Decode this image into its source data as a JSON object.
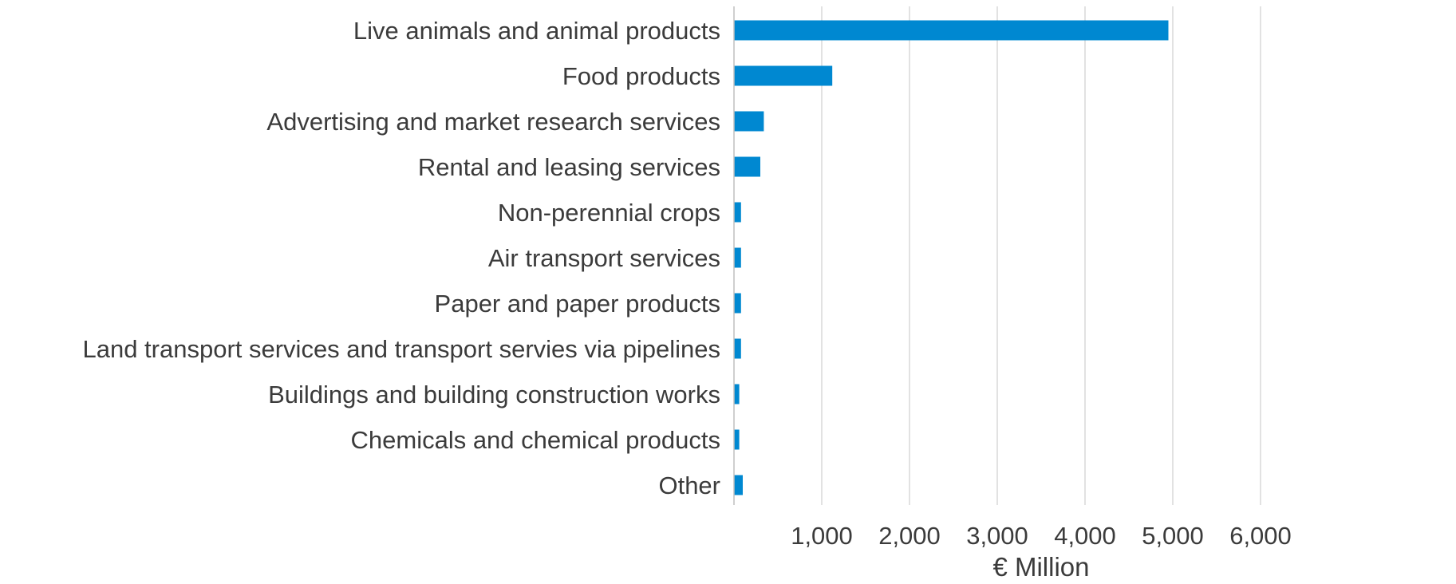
{
  "chart_data": {
    "type": "bar",
    "orientation": "horizontal",
    "title": "",
    "xlabel": "€ Million",
    "ylabel": "",
    "categories": [
      "Live animals and animal products",
      "Food products",
      "Advertising and market research services",
      "Rental and leasing services",
      "Non-perennial crops",
      "Air transport services",
      "Paper and paper products",
      "Land transport services and transport servies via pipelines",
      "Buildings and building construction works",
      "Chemicals and chemical products",
      "Other"
    ],
    "values": [
      4950,
      1120,
      340,
      300,
      80,
      80,
      80,
      80,
      60,
      60,
      100
    ],
    "xlim": [
      0,
      6500
    ],
    "x_ticks": [
      1000,
      2000,
      3000,
      4000,
      5000,
      6000
    ],
    "x_tick_labels": [
      "1,000",
      "2,000",
      "3,000",
      "4,000",
      "5,000",
      "6,000"
    ],
    "grid": true,
    "bar_color": "#0088d1",
    "legend": "none"
  }
}
